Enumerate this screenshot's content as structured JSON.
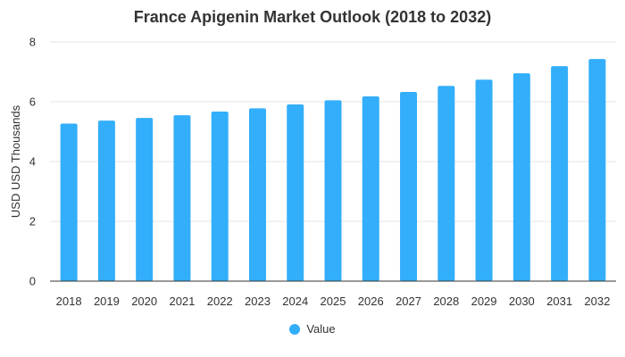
{
  "chart_data": {
    "type": "bar",
    "title": "France Apigenin Market Outlook (2018 to 2032)",
    "xlabel": "",
    "ylabel": "USD USD Thousands",
    "categories": [
      "2018",
      "2019",
      "2020",
      "2021",
      "2022",
      "2023",
      "2024",
      "2025",
      "2026",
      "2027",
      "2028",
      "2029",
      "2030",
      "2031",
      "2032"
    ],
    "series": [
      {
        "name": "Value",
        "values": [
          5.27,
          5.37,
          5.46,
          5.55,
          5.67,
          5.78,
          5.91,
          6.05,
          6.18,
          6.33,
          6.53,
          6.74,
          6.95,
          7.19,
          7.43
        ]
      }
    ],
    "ylim": [
      0,
      8
    ],
    "yticks": [
      "0",
      "2",
      "4",
      "6",
      "8"
    ],
    "grid": true,
    "legend": "bottom-center",
    "colors": {
      "bar": "#33aefa",
      "grid": "#e6e6e6",
      "axis": "#333333",
      "text": "#333333"
    }
  }
}
